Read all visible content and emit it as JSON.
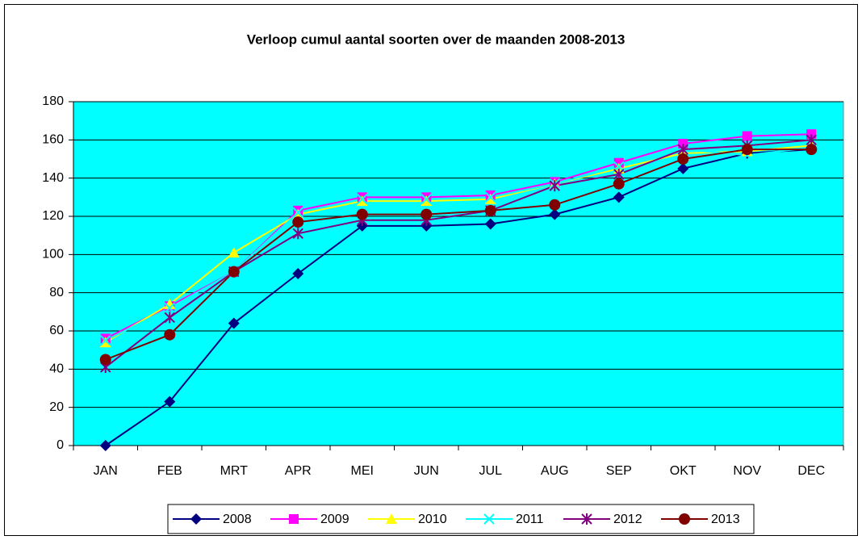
{
  "chart_data": {
    "type": "line",
    "title": "Verloop cumul aantal soorten over de maanden 2008-2013",
    "categories": [
      "JAN",
      "FEB",
      "MRT",
      "APR",
      "MEI",
      "JUN",
      "JUL",
      "AUG",
      "SEP",
      "OKT",
      "NOV",
      "DEC"
    ],
    "series": [
      {
        "name": "2008",
        "color": "#000080",
        "marker": "diamond",
        "values": [
          0,
          23,
          64,
          90,
          115,
          115,
          116,
          121,
          130,
          145,
          153,
          155
        ]
      },
      {
        "name": "2009",
        "color": "#ff00ff",
        "marker": "square",
        "values": [
          56,
          73,
          91,
          123,
          130,
          130,
          131,
          138,
          148,
          158,
          162,
          163
        ]
      },
      {
        "name": "2010",
        "color": "#ffff00",
        "marker": "triangle",
        "values": [
          54,
          74,
          101,
          121,
          128,
          128,
          129,
          137,
          145,
          153,
          154,
          157
        ]
      },
      {
        "name": "2011",
        "color": "#00ffff",
        "marker": "x",
        "values": [
          55,
          72,
          91,
          122,
          129,
          129,
          130,
          137,
          146,
          155,
          152,
          156
        ]
      },
      {
        "name": "2012",
        "color": "#800080",
        "marker": "star",
        "values": [
          41,
          67,
          91,
          111,
          118,
          118,
          123,
          136,
          142,
          155,
          157,
          160
        ]
      },
      {
        "name": "2013",
        "color": "#800000",
        "marker": "circle",
        "values": [
          45,
          58,
          91,
          117,
          121,
          121,
          123,
          126,
          137,
          150,
          155,
          155
        ]
      }
    ],
    "ylim": [
      0,
      180
    ],
    "yticks": [
      0,
      20,
      40,
      60,
      80,
      100,
      120,
      140,
      160,
      180
    ],
    "grid": true,
    "plot_background": "#00ffff",
    "legend": "bottom"
  }
}
